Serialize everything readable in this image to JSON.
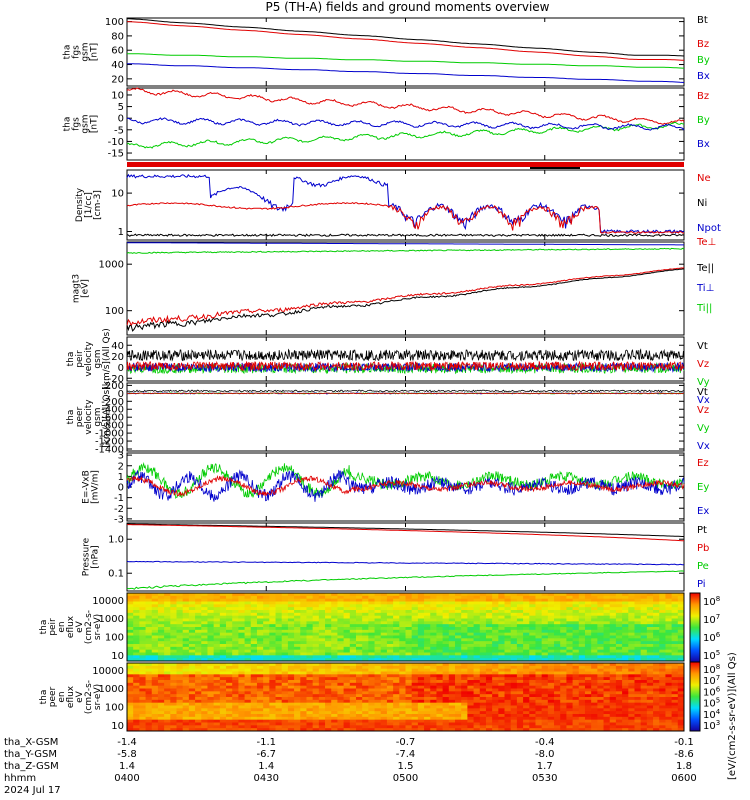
{
  "title": "P5 (TH-A) fields and ground moments overview",
  "colors": {
    "black": "#000000",
    "red": "#e00000",
    "green": "#00cc00",
    "blue": "#0000cc"
  },
  "chart_data": [
    {
      "type": "line",
      "panel": "fgs-btot",
      "ylabel": "tha\nfgs\ngsm\n[nT]",
      "yticks": [
        "100",
        "80",
        "60",
        "40",
        "20"
      ],
      "ylim": [
        10,
        105
      ],
      "series": [
        {
          "name": "Bt",
          "color": "black",
          "start": 104,
          "end": 48
        },
        {
          "name": "Bz",
          "color": "red",
          "start": 100,
          "end": 42
        },
        {
          "name": "By",
          "color": "green",
          "start": 55,
          "end": 35
        },
        {
          "name": "Bx",
          "color": "blue",
          "start": 41,
          "end": 15
        }
      ]
    },
    {
      "type": "line",
      "panel": "fgs-bcomp",
      "ylabel": "tha\nfgs\ngsm\n[nT]",
      "yticks": [
        "10",
        "5",
        "0",
        "-5",
        "-10",
        "-15"
      ],
      "ylim": [
        -18,
        13
      ],
      "series": [
        {
          "name": "Bz",
          "color": "red",
          "start": 12,
          "end": -2
        },
        {
          "name": "By",
          "color": "green",
          "start": -12,
          "end": -3
        },
        {
          "name": "Bx",
          "color": "blue",
          "start": -1,
          "end": -4
        }
      ]
    },
    {
      "type": "line",
      "panel": "density",
      "ylabel": "Density\n[1/cc]\n[cm-3]",
      "yticks": [
        "10",
        "1"
      ],
      "ylim": [
        0.6,
        40
      ],
      "log": true,
      "series": [
        {
          "name": "Ne",
          "color": "red"
        },
        {
          "name": "Ni",
          "color": "black"
        },
        {
          "name": "Npot",
          "color": "blue"
        }
      ]
    },
    {
      "type": "line",
      "panel": "temperature",
      "ylabel": "magt3\n[eV]",
      "yticks": [
        "1000",
        "100"
      ],
      "ylim": [
        30,
        3000
      ],
      "log": true,
      "series": [
        {
          "name": "Te⊥",
          "color": "red"
        },
        {
          "name": "Te||",
          "color": "black"
        },
        {
          "name": "Ti⊥",
          "color": "blue"
        },
        {
          "name": "Ti||",
          "color": "green"
        }
      ]
    },
    {
      "type": "line",
      "panel": "peir-velocity",
      "ylabel": "tha\npeir\nvelocity\ngsm\n[km/s](All Qs)",
      "yticks": [
        "40",
        "20",
        "0",
        "-20"
      ],
      "ylim": [
        -25,
        55
      ],
      "series": [
        {
          "name": "Vt",
          "color": "black"
        },
        {
          "name": "Vz",
          "color": "red"
        },
        {
          "name": "Vy",
          "color": "green"
        },
        {
          "name": "Vx",
          "color": "blue"
        }
      ]
    },
    {
      "type": "line",
      "panel": "peer-velocity",
      "ylabel": "tha\npeer\nvelocity\ngsm\n[km/s](All Qs)",
      "yticks": [
        "200",
        "0",
        "-200",
        "-400",
        "-600",
        "-800",
        "-1000",
        "-1200",
        "-1400"
      ],
      "ylim": [
        -1450,
        260
      ],
      "series": [
        {
          "name": "Vt",
          "color": "black"
        },
        {
          "name": "Vz",
          "color": "red"
        },
        {
          "name": "Vy",
          "color": "green"
        },
        {
          "name": "Vx",
          "color": "blue"
        }
      ]
    },
    {
      "type": "line",
      "panel": "efield",
      "ylabel": "E=-VxB\n[mV/m]",
      "yticks": [
        "3",
        "2",
        "1",
        "0",
        "-1",
        "-2",
        "-3"
      ],
      "ylim": [
        -3.2,
        3.2
      ],
      "series": [
        {
          "name": "Ez",
          "color": "red"
        },
        {
          "name": "Ey",
          "color": "green"
        },
        {
          "name": "Ex",
          "color": "blue"
        }
      ]
    },
    {
      "type": "line",
      "panel": "pressure",
      "ylabel": "Pressure\n[nPa]",
      "yticks": [
        "1.0",
        "0.1"
      ],
      "ylim": [
        0.03,
        3
      ],
      "log": true,
      "series": [
        {
          "name": "Pt",
          "color": "black"
        },
        {
          "name": "Pb",
          "color": "red"
        },
        {
          "name": "Pe",
          "color": "green"
        },
        {
          "name": "Pi",
          "color": "blue"
        }
      ]
    },
    {
      "type": "heatmap",
      "panel": "peir-eflux",
      "ylabel": "tha\npeir\nen\neflux\neV\n(cm2-s-\nsr-eV)",
      "yticks": [
        "10000",
        "1000",
        "100",
        "10"
      ],
      "ylim": [
        5,
        25000
      ],
      "log": true
    },
    {
      "type": "heatmap",
      "panel": "peer-eflux",
      "ylabel": "tha\npeer\nen\neflux\neV\n(cm2-s-\nsr-eV)",
      "yticks": [
        "10000",
        "1000",
        "100",
        "10"
      ],
      "ylim": [
        5,
        25000
      ],
      "log": true
    }
  ],
  "colorbar": {
    "upper_ticks": [
      "10",
      "10",
      "10",
      "10"
    ],
    "upper_exps": [
      "8",
      "7",
      "6",
      "5"
    ],
    "lower_ticks": [
      "10",
      "10",
      "10",
      "10",
      "10",
      "10"
    ],
    "lower_exps": [
      "8",
      "7",
      "6",
      "5",
      "4",
      "3"
    ],
    "label": "[eV/(cm2-s-sr-eV)](All Qs)"
  },
  "xaxis": {
    "rows": [
      {
        "label": "tha_X-GSM",
        "values": [
          "-1.4",
          "-1.1",
          "-0.7",
          "-0.4",
          "-0.1"
        ]
      },
      {
        "label": "tha_Y-GSM",
        "values": [
          "-5.8",
          "-6.7",
          "-7.4",
          "-8.0",
          "-8.6"
        ]
      },
      {
        "label": "tha_Z-GSM",
        "values": [
          "1.4",
          "1.4",
          "1.5",
          "1.7",
          "1.8"
        ]
      },
      {
        "label": "hhmm",
        "values": [
          "0400",
          "0430",
          "0500",
          "0530",
          "0600"
        ]
      }
    ],
    "date": "2024 Jul 17"
  },
  "panel_labels": [
    {
      "text": "tha\nfgs\ngsm\n[nT]"
    },
    {
      "text": "tha\nfgs\ngsm\n[nT]"
    },
    {
      "text": "Density\n[1/cc]\n[cm-3]"
    },
    {
      "text": "magt3\n[eV]"
    },
    {
      "text": "tha\npeir\nvelocity\ngsm\n[km/s](All Qs)"
    },
    {
      "text": "tha\npeer\nvelocity\ngsm\n[km/s](All Qs)"
    },
    {
      "text": "E=-VxB\n[mV/m]"
    },
    {
      "text": "Pressure\n[nPa]"
    },
    {
      "text": "tha\npeir\nen\neflux\neV\n(cm2-s-\nsr-eV)"
    },
    {
      "text": "tha\npeer\nen\neflux\neV\n(cm2-s-\nsr-eV)"
    }
  ]
}
